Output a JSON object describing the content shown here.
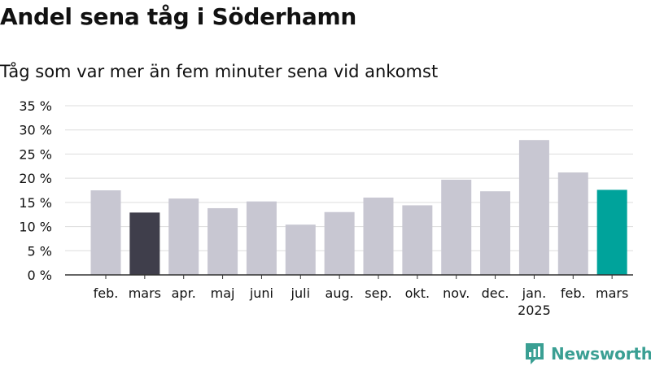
{
  "header": {
    "title": "Andel sena tåg i Söderhamn",
    "subtitle": "Tåg som var mer än fem minuter sena vid ankomst"
  },
  "brand": {
    "name": "Newsworthy",
    "color": "#3a9f93",
    "icon": "newsworthy-logo-icon"
  },
  "colors": {
    "bar_default": "#c8c7d2",
    "bar_highlight_last_year": "#3f3e4b",
    "bar_highlight_current": "#00a39b",
    "grid": "#dddddd",
    "axis": "#333333"
  },
  "chart_data": {
    "type": "bar",
    "title": "Andel sena tåg i Söderhamn",
    "subtitle": "Tåg som var mer än fem minuter sena vid ankomst",
    "xlabel": "",
    "ylabel": "",
    "categories": [
      "feb.",
      "mars",
      "apr.",
      "maj",
      "juni",
      "juli",
      "aug.",
      "sep.",
      "okt.",
      "nov.",
      "dec.",
      "jan.",
      "feb.",
      "mars"
    ],
    "category_sublabels": [
      "",
      "",
      "",
      "",
      "",
      "",
      "",
      "",
      "",
      "",
      "",
      "2025",
      "",
      ""
    ],
    "values": [
      17.5,
      12.9,
      15.8,
      13.8,
      15.2,
      10.4,
      13.0,
      16.0,
      14.4,
      19.7,
      17.3,
      27.9,
      21.2,
      17.6
    ],
    "bar_colors": [
      "#c8c7d2",
      "#3f3e4b",
      "#c8c7d2",
      "#c8c7d2",
      "#c8c7d2",
      "#c8c7d2",
      "#c8c7d2",
      "#c8c7d2",
      "#c8c7d2",
      "#c8c7d2",
      "#c8c7d2",
      "#c8c7d2",
      "#c8c7d2",
      "#00a39b"
    ],
    "yticks": [
      0,
      5,
      10,
      15,
      20,
      25,
      30,
      35
    ],
    "ytick_labels": [
      "0 %",
      "5 %",
      "10 %",
      "15 %",
      "20 %",
      "25 %",
      "30 %",
      "35 %"
    ],
    "ylim": [
      0,
      35
    ],
    "grid": true,
    "legend": "none"
  }
}
